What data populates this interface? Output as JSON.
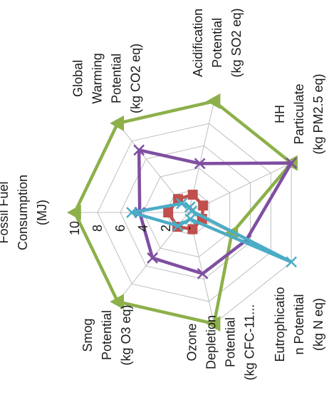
{
  "chart_data": {
    "type": "radar",
    "orientation": "rotated 90 degrees counter-clockwise",
    "categories": [
      [
        "Fossil Fuel",
        "Consumption",
        "(MJ)"
      ],
      [
        "Global",
        "Warming",
        "Potential",
        "(kg CO2 eq)"
      ],
      [
        "Acidification",
        "Potential",
        "(kg SO2 eq)"
      ],
      [
        "HH",
        "Particulate",
        "(kg PM2.5 eq)"
      ],
      [
        "Eutrophicatio",
        "n Potential",
        "(kg N eq)"
      ],
      [
        "Ozone",
        "Depletion",
        "Potential",
        "(kg CFC-11..."
      ],
      [
        "Smog",
        "Potential",
        "(kg O3 eq)"
      ]
    ],
    "ticks": [
      "-",
      "2",
      "4",
      "6",
      "8",
      "10"
    ],
    "rlim": [
      0,
      10
    ],
    "grid": true,
    "legend": "none",
    "series": [
      {
        "color": "#8db04a",
        "marker": "triangle",
        "values": [
          10,
          10,
          10,
          10,
          4.2,
          10,
          10
        ]
      },
      {
        "color": "#7f4fa1",
        "marker": "x",
        "values": [
          4.3,
          7.0,
          4.4,
          10,
          5.6,
          5.5,
          5.1
        ]
      },
      {
        "color": "#c0504d",
        "marker": "square",
        "values": [
          1.8,
          1.5,
          1.6,
          1.4,
          1.3,
          1.5,
          1.6
        ]
      },
      {
        "color": "#4bacc6",
        "marker": "x",
        "values": [
          5.0,
          1.0,
          0.5,
          0.3,
          10,
          0.6,
          1.5
        ]
      }
    ]
  }
}
